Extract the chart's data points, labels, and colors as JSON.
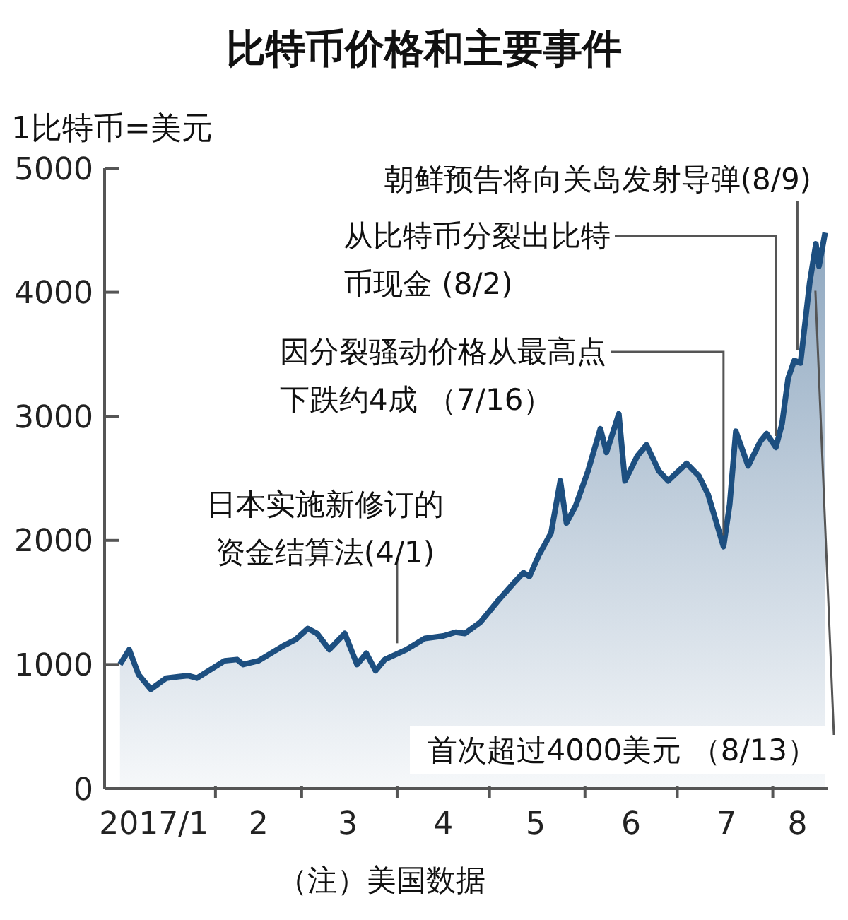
{
  "chart_data": {
    "type": "area",
    "title": "比特币价格和主要事件",
    "ylabel": "1比特币=美元",
    "x": [
      "2017-01-01",
      "2017-01-04",
      "2017-01-07",
      "2017-01-11",
      "2017-01-16",
      "2017-01-23",
      "2017-01-26",
      "2017-02-04",
      "2017-02-08",
      "2017-02-10",
      "2017-02-15",
      "2017-02-23",
      "2017-02-27",
      "2017-03-03",
      "2017-03-06",
      "2017-03-10",
      "2017-03-15",
      "2017-03-19",
      "2017-03-22",
      "2017-03-25",
      "2017-03-28",
      "2017-04-04",
      "2017-04-10",
      "2017-04-16",
      "2017-04-20",
      "2017-04-23",
      "2017-04-28",
      "2017-05-04",
      "2017-05-09",
      "2017-05-12",
      "2017-05-14",
      "2017-05-17",
      "2017-05-21",
      "2017-05-24",
      "2017-05-26",
      "2017-05-29",
      "2017-06-02",
      "2017-06-06",
      "2017-06-08",
      "2017-06-12",
      "2017-06-14",
      "2017-06-18",
      "2017-06-21",
      "2017-06-25",
      "2017-06-28",
      "2017-07-04",
      "2017-07-08",
      "2017-07-11",
      "2017-07-16",
      "2017-07-18",
      "2017-07-20",
      "2017-07-24",
      "2017-07-28",
      "2017-07-30",
      "2017-08-02",
      "2017-08-04",
      "2017-08-06",
      "2017-08-08",
      "2017-08-10",
      "2017-08-13",
      "2017-08-15",
      "2017-08-16",
      "2017-08-18"
    ],
    "series": [
      {
        "color": "#1d4f80",
        "values": [
          1000,
          1120,
          920,
          800,
          890,
          910,
          890,
          1030,
          1040,
          1000,
          1030,
          1150,
          1200,
          1290,
          1250,
          1120,
          1250,
          1000,
          1090,
          950,
          1040,
          1120,
          1210,
          1230,
          1260,
          1250,
          1340,
          1520,
          1660,
          1740,
          1710,
          1880,
          2060,
          2480,
          2140,
          2280,
          2560,
          2900,
          2710,
          3020,
          2480,
          2680,
          2770,
          2560,
          2480,
          2620,
          2520,
          2370,
          1950,
          2290,
          2880,
          2600,
          2800,
          2860,
          2750,
          2940,
          3310,
          3450,
          3430,
          4080,
          4390,
          4210,
          4480
        ]
      }
    ],
    "xlim": [
      "2016-12-27",
      "2017-08-19"
    ],
    "xticks": [
      {
        "value": "2017-01-12",
        "label": "2017/1"
      },
      {
        "value": "2017-02-01",
        "label": null
      },
      {
        "value": "2017-02-15",
        "label": "2"
      },
      {
        "value": "2017-03-01",
        "label": null
      },
      {
        "value": "2017-03-16",
        "label": "3"
      },
      {
        "value": "2017-04-01",
        "label": null
      },
      {
        "value": "2017-04-16",
        "label": "4"
      },
      {
        "value": "2017-05-01",
        "label": null
      },
      {
        "value": "2017-05-16",
        "label": "5"
      },
      {
        "value": "2017-06-01",
        "label": null
      },
      {
        "value": "2017-06-16",
        "label": "6"
      },
      {
        "value": "2017-07-01",
        "label": null
      },
      {
        "value": "2017-07-17",
        "label": "7"
      },
      {
        "value": "2017-08-01",
        "label": null
      },
      {
        "value": "2017-08-09",
        "label": "8"
      }
    ],
    "ylim": [
      0,
      5000
    ],
    "yticks": [
      0,
      1000,
      2000,
      3000,
      4000,
      5000
    ],
    "grid": false,
    "legend": false,
    "annotations": [
      {
        "text": "日本实施新修订的资金结算法(4/1)",
        "x": "2017-04-01",
        "y": 1080
      },
      {
        "text": "因分裂骚动价格从最高点下跌约4成 （7/16）",
        "x": "2017-07-16",
        "y": 1950
      },
      {
        "text": "从比特币分裂出比特币现金 (8/2)",
        "x": "2017-08-02",
        "y": 2750
      },
      {
        "text": "朝鲜预告将向关岛发射导弹(8/9)",
        "x": "2017-08-09",
        "y": 3440
      },
      {
        "text": "首次超过4000美元 （8/13）",
        "x": "2017-08-13",
        "y": 4080
      },
      "（注）美国数据"
    ]
  }
}
